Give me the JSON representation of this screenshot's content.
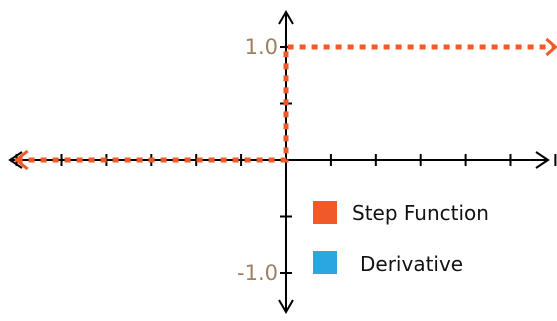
{
  "chart_data": {
    "type": "line",
    "x": [
      -6,
      0,
      0,
      6
    ],
    "xlim": [
      -6,
      6
    ],
    "ylim": [
      -1.4,
      1.4
    ],
    "x_ticks": [
      -6,
      -5,
      -4,
      -3,
      -2,
      -1,
      0,
      1,
      2,
      3,
      4,
      5,
      6
    ],
    "y_ticks": [
      -1,
      -0.5,
      0,
      0.5,
      1
    ],
    "y_tick_labels": [
      {
        "value": -1.0,
        "text": "-1.0"
      },
      {
        "value": 1.0,
        "text": "1.0"
      }
    ],
    "series": [
      {
        "name": "Step Function",
        "x": [
          -6,
          0,
          0,
          6
        ],
        "y": [
          0,
          0,
          1,
          1
        ],
        "color": "#f05a28",
        "style": "dotted"
      },
      {
        "name": "Derivative",
        "x": [],
        "y": [],
        "color": "#29a8e0",
        "style": "solid"
      }
    ],
    "legend": {
      "placement": "lower-right"
    },
    "axis_color": "#000000",
    "tick_label_color": "#a08060",
    "grid": false
  }
}
